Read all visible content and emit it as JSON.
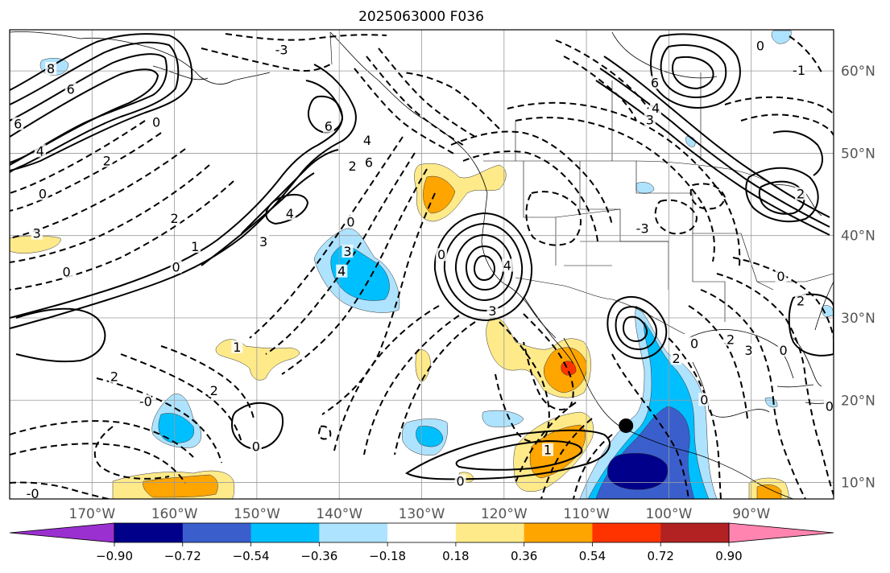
{
  "title": "2025063000 F036",
  "map": {
    "lon_range": [
      -180,
      -80
    ],
    "lat_range": [
      8,
      65
    ],
    "lon_ticks": [
      {
        "lon": -170,
        "label": "170°W"
      },
      {
        "lon": -160,
        "label": "160°W"
      },
      {
        "lon": -150,
        "label": "150°W"
      },
      {
        "lon": -140,
        "label": "140°W"
      },
      {
        "lon": -130,
        "label": "130°W"
      },
      {
        "lon": -120,
        "label": "120°W"
      },
      {
        "lon": -110,
        "label": "110°W"
      },
      {
        "lon": -100,
        "label": "100°W"
      },
      {
        "lon": -90,
        "label": "90°W"
      }
    ],
    "lat_ticks": [
      {
        "lat": 10,
        "label": "10°N"
      },
      {
        "lat": 20,
        "label": "20°N"
      },
      {
        "lat": 30,
        "label": "30°N"
      },
      {
        "lat": 40,
        "label": "40°N"
      },
      {
        "lat": 50,
        "label": "50°N"
      },
      {
        "lat": 60,
        "label": "60°N"
      }
    ],
    "grid": true,
    "marker": {
      "lon": -105.2,
      "lat": 16.9,
      "color": "#000000"
    }
  },
  "colorbar": {
    "levels": [
      "−0.90",
      "−0.72",
      "−0.54",
      "−0.36",
      "−0.18",
      "0.18",
      "0.36",
      "0.54",
      "0.72",
      "0.90"
    ],
    "colors": [
      "#9b30d0",
      "#00008b",
      "#3a5fcd",
      "#00bfff",
      "#aee3ff",
      "#ffffff",
      "#ffea8a",
      "#ffa500",
      "#ff3300",
      "#b22222",
      "#ff85b0"
    ],
    "extend": "both"
  },
  "contour_labels": [
    {
      "lon": -147,
      "lat": 62.5,
      "text": "-3"
    },
    {
      "lon": -175,
      "lat": 60.2,
      "text": "8"
    },
    {
      "lon": -172.6,
      "lat": 57.7,
      "text": "6"
    },
    {
      "lon": -179,
      "lat": 53.5,
      "text": "6"
    },
    {
      "lon": -176.3,
      "lat": 50.2,
      "text": "4"
    },
    {
      "lon": -162.2,
      "lat": 53.7,
      "text": "0"
    },
    {
      "lon": -176,
      "lat": 45,
      "text": "0"
    },
    {
      "lon": -168.2,
      "lat": 49,
      "text": "2"
    },
    {
      "lon": -141.3,
      "lat": 53.2,
      "text": "6"
    },
    {
      "lon": -136.6,
      "lat": 51.5,
      "text": "4"
    },
    {
      "lon": -138.4,
      "lat": 48.4,
      "text": "2"
    },
    {
      "lon": -136.4,
      "lat": 48.8,
      "text": "6"
    },
    {
      "lon": -146,
      "lat": 42.6,
      "text": "4"
    },
    {
      "lon": -138.6,
      "lat": 41.6,
      "text": "0"
    },
    {
      "lon": -149.2,
      "lat": 39.2,
      "text": "3"
    },
    {
      "lon": -157.5,
      "lat": 38.6,
      "text": "1"
    },
    {
      "lon": -160,
      "lat": 42,
      "text": "2"
    },
    {
      "lon": -176.7,
      "lat": 40.2,
      "text": "3"
    },
    {
      "lon": -159.8,
      "lat": 36.1,
      "text": "0"
    },
    {
      "lon": -173.1,
      "lat": 35.5,
      "text": "0"
    },
    {
      "lon": -139.7,
      "lat": 35.6,
      "text": "4"
    },
    {
      "lon": -139,
      "lat": 38,
      "text": "3"
    },
    {
      "lon": -127.6,
      "lat": 37.6,
      "text": "0"
    },
    {
      "lon": -119.6,
      "lat": 36.3,
      "text": "4"
    },
    {
      "lon": -121.4,
      "lat": 30.8,
      "text": "3"
    },
    {
      "lon": -152.4,
      "lat": 26.4,
      "text": "1"
    },
    {
      "lon": -167.3,
      "lat": 22.8,
      "text": "2"
    },
    {
      "lon": -155.2,
      "lat": 21.1,
      "text": "2"
    },
    {
      "lon": -150.1,
      "lat": 14.3,
      "text": "0"
    },
    {
      "lon": -163.5,
      "lat": 19.8,
      "text": "-0"
    },
    {
      "lon": -177.2,
      "lat": 8.6,
      "text": "-0"
    },
    {
      "lon": -114.7,
      "lat": 13.9,
      "text": "1"
    },
    {
      "lon": -125.3,
      "lat": 10.1,
      "text": "0"
    },
    {
      "lon": -99.1,
      "lat": 25,
      "text": "2"
    },
    {
      "lon": -96.9,
      "lat": 26.8,
      "text": "0"
    },
    {
      "lon": -92.5,
      "lat": 27.3,
      "text": "2"
    },
    {
      "lon": -90.3,
      "lat": 26,
      "text": "3"
    },
    {
      "lon": -95.7,
      "lat": 20,
      "text": "0"
    },
    {
      "lon": -86.1,
      "lat": 26,
      "text": "0"
    },
    {
      "lon": -86.4,
      "lat": 35,
      "text": "0"
    },
    {
      "lon": -84,
      "lat": 32,
      "text": "2"
    },
    {
      "lon": -80.5,
      "lat": 19.2,
      "text": "0"
    },
    {
      "lon": -103.2,
      "lat": 40.8,
      "text": "-3"
    },
    {
      "lon": -101.7,
      "lat": 58.5,
      "text": "6"
    },
    {
      "lon": -88.9,
      "lat": 63,
      "text": "0"
    },
    {
      "lon": -101.6,
      "lat": 55.4,
      "text": "4"
    },
    {
      "lon": -102.3,
      "lat": 54,
      "text": "3"
    },
    {
      "lon": -84.2,
      "lat": 60,
      "text": "-1"
    },
    {
      "lon": -84,
      "lat": 45,
      "text": "2"
    }
  ]
}
